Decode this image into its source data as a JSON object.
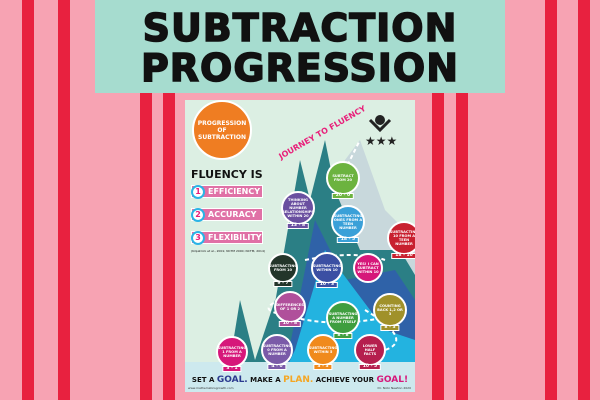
{
  "title": {
    "line1": "SUBTRACTION",
    "line2": "PROGRESSION"
  },
  "poster": {
    "heading": "PROGRESSION OF SUBTRACTION",
    "journey": "JOURNEY TO FLUENCY",
    "fluency_title": "FLUENCY IS",
    "fluency": [
      {
        "n": "1",
        "label": "EFFICIENCY"
      },
      {
        "n": "2",
        "label": "ACCURACY"
      },
      {
        "n": "3",
        "label": "FLEXIBILITY"
      }
    ],
    "citation": "(Kilpatrick et al., 2001; NCTM 2000; NCTM, 2014)",
    "nodes": [
      {
        "label": "SUBTRACT FROM 20",
        "fact": "20 - 0",
        "color": "#6cb33f"
      },
      {
        "label": "THINKING ABOUT NUMBER RELATIONSHIPS WITHIN 20",
        "fact": "13 - 8",
        "color": "#6a4fa0"
      },
      {
        "label": "SUBTRACTING ONES FROM A TEEN NUMBER",
        "fact": "18 - 5",
        "color": "#3aa0d8"
      },
      {
        "label": "SUBTRACTING 10 FROM A TEEN NUMBER",
        "fact": "18 - 10",
        "color": "#c8202f"
      },
      {
        "label": "SUBTRACTING FROM 10",
        "fact": "9 - 7",
        "color": "#23352a"
      },
      {
        "label": "SUBTRACTING WITHIN 10",
        "fact": "10 - 3",
        "color": "#3b4fa3"
      },
      {
        "label": "YES! I CAN SUBTRACT WITHIN 10",
        "fact": "",
        "color": "#d6177a"
      },
      {
        "label": "DIFFERENCES OF 1 OR 2",
        "fact": "10 - 8",
        "color": "#b0509b"
      },
      {
        "label": "SUBTRACTING A NUMBER FROM ITSELF",
        "fact": "8 - 8",
        "color": "#3f9e3f"
      },
      {
        "label": "COUNTING BACK 1,2 OR 3",
        "fact": "8 - 3",
        "color": "#a0912a"
      },
      {
        "label": "SUBTRACTING 1 FROM A NUMBER",
        "fact": "3 - 1",
        "color": "#d6177a"
      },
      {
        "label": "SUBTRACTING 0 FROM A NUMBER",
        "fact": "4 - 0",
        "color": "#7a5aa8"
      },
      {
        "label": "SUBTRACTING WITHIN 5",
        "fact": "3 - 3",
        "color": "#f08a1c"
      },
      {
        "label": "LOWER HALF FACTS",
        "fact": "10 - 5",
        "color": "#b51f4e"
      }
    ],
    "footer": {
      "p1": "SET A ",
      "goal": "GOAL.",
      "p2": " MAKE A ",
      "plan": "PLAN.",
      "p3": " ACHIEVE YOUR ",
      "goal2": "GOAL!"
    },
    "website": "www.mathematicsgrowth.com",
    "author": "Dr. Nicki Newton 2020"
  },
  "colors": {
    "stripe": "#e8213f",
    "background": "#f7a3b3",
    "banner": "#a6dccf",
    "orange": "#ef7d22"
  }
}
